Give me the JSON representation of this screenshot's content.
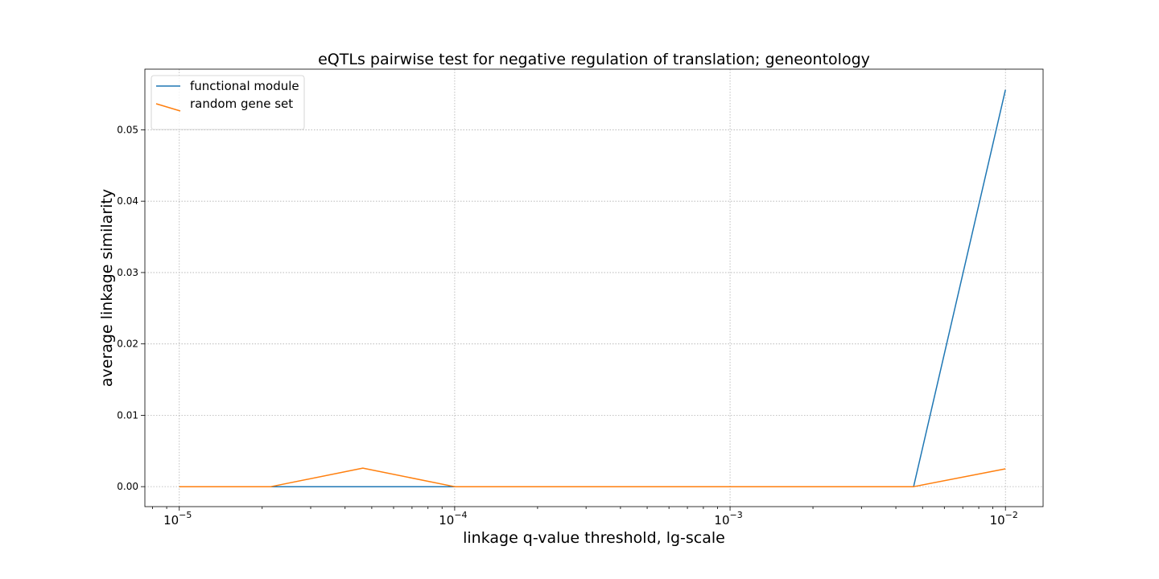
{
  "chart_data": {
    "type": "line",
    "title": "eQTLs pairwise test for negative regulation of translation; geneontology",
    "xlabel": "linkage q-value threshold, lg-scale",
    "ylabel": "average linkage similarity",
    "xscale": "log",
    "xlim": [
      7.5e-06,
      0.0137
    ],
    "ylim": [
      -0.0028,
      0.0585
    ],
    "x_ticks": [
      {
        "value": 1e-05,
        "base": "10",
        "exp": "−5"
      },
      {
        "value": 0.0001,
        "base": "10",
        "exp": "−4"
      },
      {
        "value": 0.001,
        "base": "10",
        "exp": "−3"
      },
      {
        "value": 0.01,
        "base": "10",
        "exp": "−2"
      }
    ],
    "y_ticks": [
      {
        "value": 0.0,
        "label": "0.00"
      },
      {
        "value": 0.01,
        "label": "0.01"
      },
      {
        "value": 0.02,
        "label": "0.02"
      },
      {
        "value": 0.03,
        "label": "0.03"
      },
      {
        "value": 0.04,
        "label": "0.04"
      },
      {
        "value": 0.05,
        "label": "0.05"
      }
    ],
    "grid": true,
    "legend_position": "top-left",
    "series": [
      {
        "name": "functional module",
        "color": "#1f77b4",
        "x": [
          1e-05,
          2.15e-05,
          4.64e-05,
          0.0001,
          0.000215,
          0.000464,
          0.001,
          0.00215,
          0.00464,
          0.01
        ],
        "y": [
          0.0,
          0.0,
          0.0,
          0.0,
          0.0,
          0.0,
          0.0,
          0.0,
          0.0,
          0.0556
        ]
      },
      {
        "name": "random gene set",
        "color": "#ff7f0e",
        "x": [
          1e-05,
          2.15e-05,
          4.64e-05,
          0.0001,
          0.000215,
          0.000464,
          0.001,
          0.00215,
          0.00464,
          0.01
        ],
        "y": [
          0.0,
          0.0,
          0.0026,
          0.0,
          0.0,
          0.0,
          0.0,
          0.0,
          0.0,
          0.0025
        ]
      }
    ]
  }
}
